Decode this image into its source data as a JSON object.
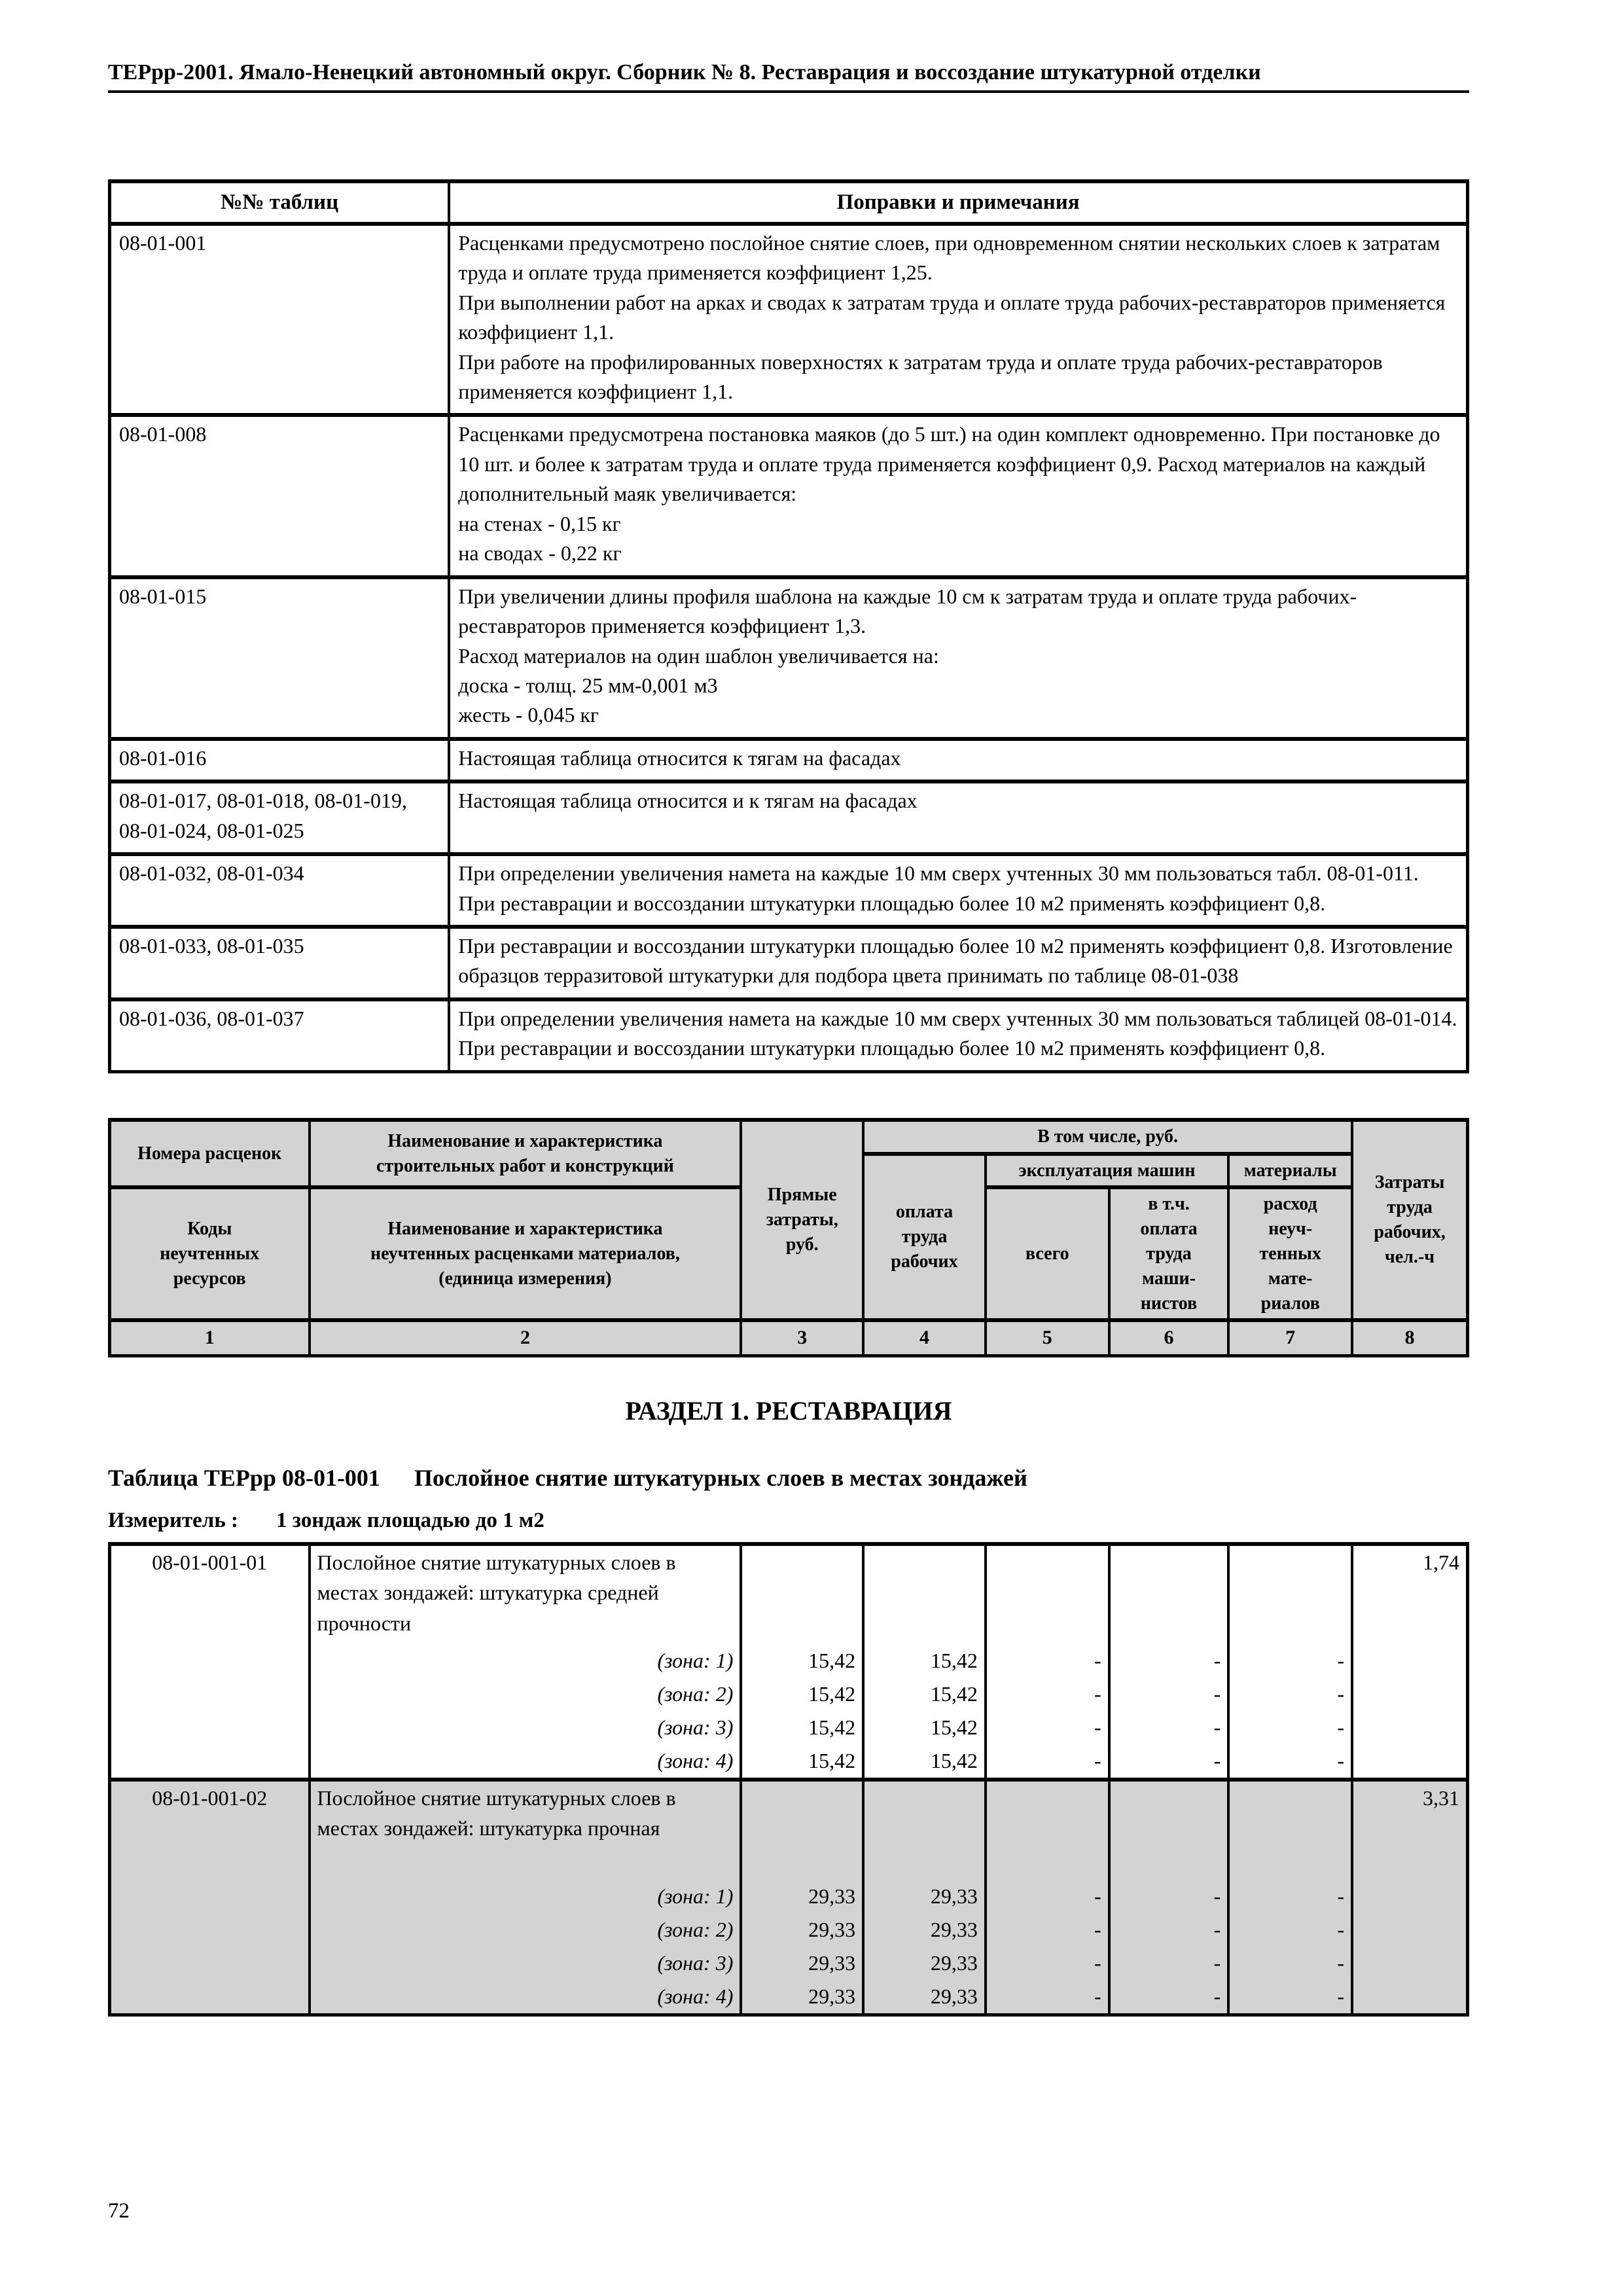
{
  "colors": {
    "table_header_bg": "#d3d3d3",
    "shaded_row_bg": "#d3d3d3",
    "text": "#000000"
  },
  "header": {
    "title": "ТЕРрр-2001. Ямало-Ненецкий автономный округ. Сборник № 8. Реставрация и воссоздание штукатурной отделки"
  },
  "notes_table": {
    "col1_header": "№№ таблиц",
    "col2_header": "Поправки и примечания",
    "rows": [
      {
        "code": "08-01-001",
        "lines": [
          "Расценками предусмотрено послойное снятие слоев, при одновременном снятии нескольких слоев к затратам труда и оплате труда применяется коэффициент 1,25.",
          "При выполнении работ на арках и сводах к затратам труда и оплате труда рабочих-реставраторов применяется коэффициент 1,1.",
          "При работе на профилированных поверхностях к затратам труда и оплате труда рабочих-реставраторов применяется коэффициент 1,1."
        ]
      },
      {
        "code": "08-01-008",
        "lines": [
          "Расценками предусмотрена постановка маяков (до 5 шт.) на один комплект одновременно. При постановке до 10 шт. и более к затратам труда и оплате труда применяется коэффициент 0,9. Расход материалов на каждый дополнительный маяк увеличивается:",
          "на стенах - 0,15 кг",
          "на сводах - 0,22 кг"
        ]
      },
      {
        "code": "08-01-015",
        "lines": [
          "При увеличении длины профиля шаблона на каждые 10 см к затратам труда и оплате труда рабочих-реставраторов применяется коэффициент 1,3.",
          "Расход материалов на один шаблон увеличивается на:",
          "доска - толщ. 25 мм-0,001 м3",
          "жесть - 0,045 кг"
        ]
      },
      {
        "code": "08-01-016",
        "lines": [
          "Настоящая таблица относится к тягам на фасадах"
        ]
      },
      {
        "code": "08-01-017, 08-01-018, 08-01-019, 08-01-024, 08-01-025",
        "lines": [
          "Настоящая таблица относится и к тягам на фасадах"
        ]
      },
      {
        "code": "08-01-032, 08-01-034",
        "lines": [
          "При определении увеличения намета на каждые 10 мм сверх учтенных 30 мм пользоваться табл. 08-01-011.",
          "При реставрации и воссоздании штукатурки площадью более 10 м2 применять коэффициент 0,8."
        ]
      },
      {
        "code": "08-01-033, 08-01-035",
        "lines": [
          "При реставрации и воссоздании штукатурки площадью более 10 м2 применять коэффициент 0,8. Изготовление образцов терразитовой штукатурки для подбора цвета принимать по таблице 08-01-038"
        ]
      },
      {
        "code": "08-01-036, 08-01-037",
        "lines": [
          "При определении увеличения намета на каждые 10 мм сверх учтенных 30 мм пользоваться таблицей 08-01-014.",
          "При реставрации и воссоздании штукатурки площадью более 10 м2 применять коэффициент 0,8."
        ]
      }
    ]
  },
  "rate_header": {
    "col1_top": "Номера расценок",
    "col2_top": "Наименование и характеристика\nстроительных работ и конструкций",
    "col1_bottom": "Коды\nнеучтенных\nресурсов",
    "col2_bottom": "Наименование и характеристика\nнеучтенных расценками материалов,\n(единица измерения)",
    "col3": "Прямые\nзатраты,\nруб.",
    "group": "В том числе, руб.",
    "col4": "оплата\nтруда\nрабочих",
    "machines": "эксплуатация машин",
    "materials": "материалы",
    "col5": "всего",
    "col6": "в т.ч.\nоплата\nтруда\nмаши-\nнистов",
    "col7": "расход\nнеуч-\nтенных\nмате-\nриалов",
    "col8": "Затраты\nтруда\nрабочих,\nчел.-ч",
    "numbers": [
      "1",
      "2",
      "3",
      "4",
      "5",
      "6",
      "7",
      "8"
    ]
  },
  "section": {
    "title": "РАЗДЕЛ 1. РЕСТАВРАЦИЯ"
  },
  "rate_table": {
    "caption_code": "Таблица ТЕРрр 08-01-001",
    "caption_title": "Послойное снятие штукатурных слоев в местах зондажей",
    "measure_label": "Измеритель :",
    "measure_value": "1 зондаж площадью до 1 м2",
    "rows": [
      {
        "code": "08-01-001-01",
        "desc": "Послойное снятие штукатурных слоев в местах зондажей: штукатурка средней прочности",
        "labor": "1,74",
        "zones": [
          {
            "label": "(зона: 1)",
            "direct": "15,42",
            "wages": "15,42",
            "machines_total": "-",
            "machinists": "-",
            "materials": "-"
          },
          {
            "label": "(зона: 2)",
            "direct": "15,42",
            "wages": "15,42",
            "machines_total": "-",
            "machinists": "-",
            "materials": "-"
          },
          {
            "label": "(зона: 3)",
            "direct": "15,42",
            "wages": "15,42",
            "machines_total": "-",
            "machinists": "-",
            "materials": "-"
          },
          {
            "label": "(зона: 4)",
            "direct": "15,42",
            "wages": "15,42",
            "machines_total": "-",
            "machinists": "-",
            "materials": "-"
          }
        ]
      },
      {
        "code": "08-01-001-02",
        "desc": "Послойное снятие штукатурных слоев в местах зондажей: штукатурка прочная",
        "labor": "3,31",
        "zones": [
          {
            "label": "(зона: 1)",
            "direct": "29,33",
            "wages": "29,33",
            "machines_total": "-",
            "machinists": "-",
            "materials": "-"
          },
          {
            "label": "(зона: 2)",
            "direct": "29,33",
            "wages": "29,33",
            "machines_total": "-",
            "machinists": "-",
            "materials": "-"
          },
          {
            "label": "(зона: 3)",
            "direct": "29,33",
            "wages": "29,33",
            "machines_total": "-",
            "machinists": "-",
            "materials": "-"
          },
          {
            "label": "(зона: 4)",
            "direct": "29,33",
            "wages": "29,33",
            "machines_total": "-",
            "machinists": "-",
            "materials": "-"
          }
        ]
      }
    ]
  },
  "footer": {
    "page_number": "72"
  }
}
